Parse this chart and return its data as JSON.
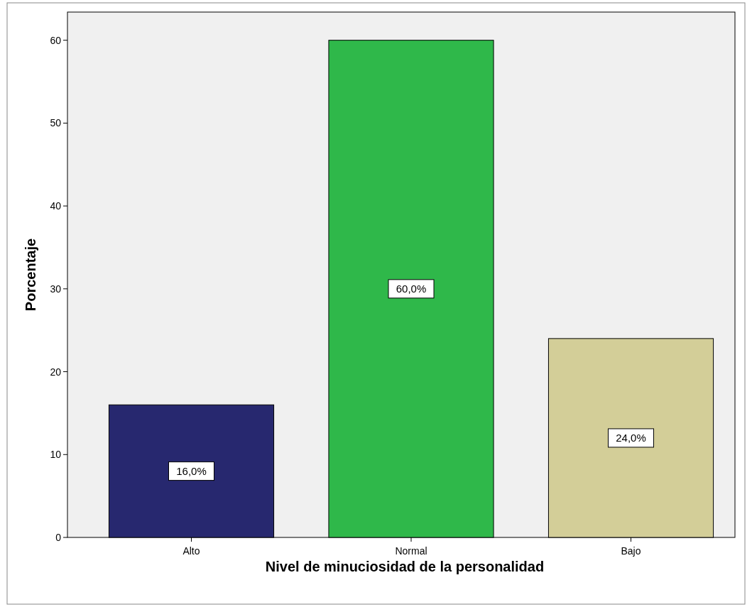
{
  "chart_data": {
    "type": "bar",
    "xlabel": "Nivel de minuciosidad de la personalidad",
    "ylabel": "Porcentaje",
    "categories": [
      "Alto",
      "Normal",
      "Bajo"
    ],
    "values": [
      16,
      60,
      24
    ],
    "colors": [
      "#27286f",
      "#2fb84a",
      "#d3ce98"
    ],
    "value_labels": [
      "16,0%",
      "60,0%",
      "24,0%"
    ],
    "ylim": [
      0,
      63.4
    ],
    "yticks": [
      0,
      10,
      20,
      30,
      40,
      50,
      60
    ],
    "grid": false
  }
}
